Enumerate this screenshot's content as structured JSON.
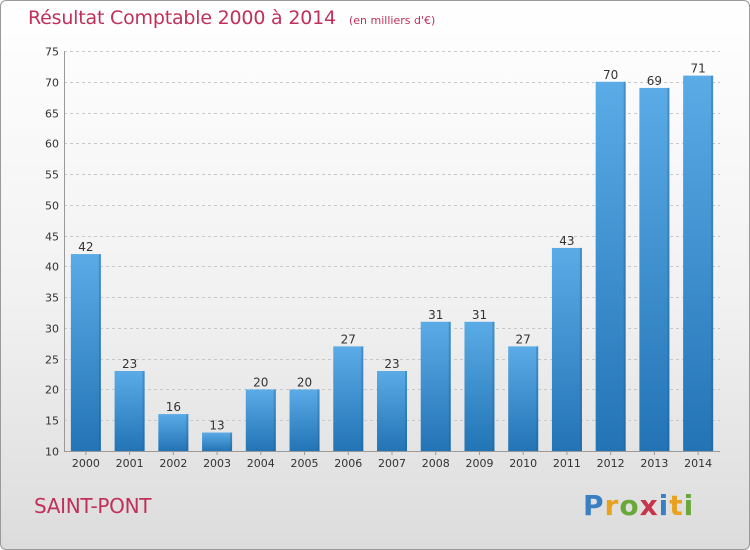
{
  "title": "Résultat Comptable 2000 à 2014",
  "subtitle": "(en milliers d'€)",
  "commune": "SAINT-PONT",
  "brand": {
    "letters": [
      {
        "ch": "P",
        "color": "#3a7fc4"
      },
      {
        "ch": "r",
        "color": "#e8a21d"
      },
      {
        "ch": "o",
        "color": "#6aa83a"
      },
      {
        "ch": "x",
        "color": "#c8344a"
      },
      {
        "ch": "i",
        "color": "#3a7fc4"
      },
      {
        "ch": "t",
        "color": "#e8a21d"
      },
      {
        "ch": "i",
        "color": "#6aa83a"
      }
    ]
  },
  "colors": {
    "title": "#c0305a",
    "bar_light": "#5aabe6",
    "bar_dark": "#2374b5",
    "grid": "#c8c8c8",
    "axis_text": "#333333"
  },
  "chart_data": {
    "type": "bar",
    "title": "Résultat Comptable 2000 à 2014",
    "subtitle": "(en milliers d'€)",
    "xlabel": "",
    "ylabel": "",
    "ylim": [
      10,
      75
    ],
    "yticks": [
      10,
      15,
      20,
      25,
      30,
      35,
      40,
      45,
      50,
      55,
      60,
      65,
      70,
      75
    ],
    "grid": true,
    "categories": [
      "2000",
      "2001",
      "2002",
      "2003",
      "2004",
      "2005",
      "2006",
      "2007",
      "2008",
      "2009",
      "2010",
      "2011",
      "2012",
      "2013",
      "2014"
    ],
    "values": [
      42,
      23,
      16,
      13,
      20,
      20,
      27,
      23,
      31,
      31,
      27,
      43,
      70,
      69,
      71
    ]
  }
}
